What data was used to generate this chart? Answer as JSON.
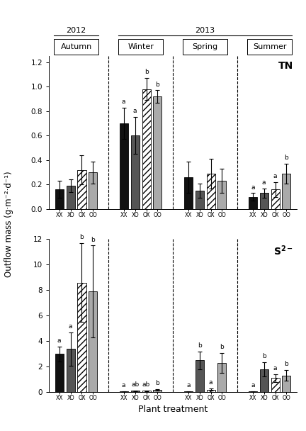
{
  "seasons": [
    "Autumn",
    "Winter",
    "Spring",
    "Summer"
  ],
  "treatments": [
    "XX",
    "XO",
    "OX",
    "OO"
  ],
  "TN": {
    "Autumn": {
      "values": [
        0.16,
        0.19,
        0.32,
        0.3
      ],
      "errors": [
        0.07,
        0.05,
        0.12,
        0.09
      ],
      "letters": [
        "",
        "",
        "",
        ""
      ]
    },
    "Winter": {
      "values": [
        0.7,
        0.6,
        0.98,
        0.92
      ],
      "errors": [
        0.13,
        0.15,
        0.09,
        0.05
      ],
      "letters": [
        "a",
        "a",
        "b",
        "b"
      ]
    },
    "Spring": {
      "values": [
        0.26,
        0.15,
        0.29,
        0.23
      ],
      "errors": [
        0.13,
        0.06,
        0.12,
        0.1
      ],
      "letters": [
        "",
        "",
        "",
        ""
      ]
    },
    "Summer": {
      "values": [
        0.1,
        0.13,
        0.16,
        0.29
      ],
      "errors": [
        0.03,
        0.04,
        0.06,
        0.08
      ],
      "letters": [
        "a",
        "a",
        "a",
        "b"
      ]
    }
  },
  "S2": {
    "Autumn": {
      "values": [
        3.0,
        3.4,
        8.6,
        7.9
      ],
      "errors": [
        0.6,
        1.3,
        3.1,
        3.6
      ],
      "letters": [
        "a",
        "a",
        "b",
        "b"
      ]
    },
    "Winter": {
      "values": [
        0.05,
        0.1,
        0.1,
        0.18
      ],
      "errors": [
        0.02,
        0.05,
        0.04,
        0.07
      ],
      "letters": [
        "a",
        "ab",
        "ab",
        "b"
      ]
    },
    "Spring": {
      "values": [
        0.05,
        2.5,
        0.2,
        2.3
      ],
      "errors": [
        0.02,
        0.7,
        0.08,
        0.8
      ],
      "letters": [
        "a",
        "b",
        "a",
        "b"
      ]
    },
    "Summer": {
      "values": [
        0.05,
        1.8,
        1.1,
        1.3
      ],
      "errors": [
        0.02,
        0.55,
        0.32,
        0.42
      ],
      "letters": [
        "a",
        "b",
        "a",
        "b"
      ]
    }
  },
  "bar_colors": [
    "#111111",
    "#555555",
    "#ffffff",
    "#aaaaaa"
  ],
  "bar_hatches": [
    null,
    null,
    "////",
    null
  ],
  "TN_ylim": [
    0.0,
    1.25
  ],
  "TN_yticks": [
    0.0,
    0.2,
    0.4,
    0.6,
    0.8,
    1.0,
    1.2
  ],
  "S2_ylim": [
    0,
    12
  ],
  "S2_yticks": [
    0,
    2,
    4,
    6,
    8,
    10,
    12
  ],
  "ylabel": "Outflow mass (g·m⁻²·d⁻¹)",
  "xlabel": "Plant treatment",
  "year_brackets": [
    {
      "label": "2012",
      "season_indices": [
        0
      ]
    },
    {
      "label": "2013",
      "season_indices": [
        1,
        2,
        3
      ]
    }
  ]
}
